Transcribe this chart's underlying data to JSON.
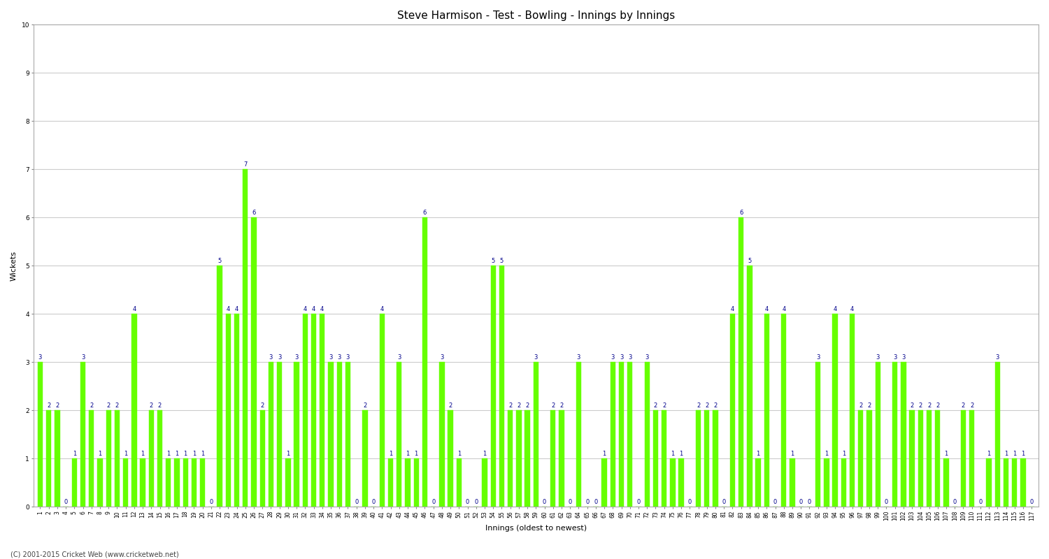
{
  "title": "Steve Harmison - Test - Bowling - Innings by Innings",
  "ylabel": "Wickets",
  "xlabel": "Innings (oldest to newest)",
  "bar_color": "#66ff00",
  "bar_edge_color": "#66ff00",
  "label_color": "#00008B",
  "background_color": "#ffffff",
  "plot_bg_color": "#ffffff",
  "grid_color": "#cccccc",
  "ylim": [
    0,
    10
  ],
  "yticks": [
    0,
    1,
    2,
    3,
    4,
    5,
    6,
    7,
    8,
    9,
    10
  ],
  "wickets": [
    3,
    2,
    2,
    0,
    1,
    3,
    2,
    1,
    2,
    2,
    1,
    4,
    1,
    2,
    2,
    1,
    1,
    1,
    1,
    1,
    0,
    5,
    4,
    4,
    7,
    6,
    2,
    3,
    3,
    1,
    3,
    4,
    4,
    4,
    3,
    3,
    3,
    0,
    2,
    0,
    4,
    1,
    3,
    1,
    1,
    6,
    0,
    3,
    2,
    1,
    0,
    0,
    1,
    5,
    5,
    2,
    2,
    2,
    3,
    0,
    2,
    2,
    0,
    3,
    0,
    0,
    1,
    3,
    3,
    3,
    0,
    3,
    2,
    2,
    1,
    1,
    0,
    2,
    2,
    2,
    0,
    4,
    6,
    5,
    1,
    4,
    0,
    4,
    1,
    0,
    0,
    3,
    1,
    4,
    1,
    4,
    2,
    2,
    3,
    0,
    3,
    3,
    2,
    2,
    2,
    2,
    1,
    0,
    2,
    2,
    0,
    1,
    3,
    1,
    1,
    1,
    0
  ],
  "x_labels": [
    "1",
    "2",
    "3",
    "4",
    "5",
    "6",
    "7",
    "8",
    "9",
    "10",
    "11",
    "12",
    "13",
    "14",
    "15",
    "16",
    "17",
    "18",
    "19",
    "20",
    "21",
    "22",
    "23",
    "24",
    "25",
    "26",
    "27",
    "28",
    "29",
    "30",
    "31",
    "32",
    "33",
    "34",
    "35",
    "36",
    "37",
    "38",
    "39",
    "40",
    "41",
    "42",
    "43",
    "44",
    "45",
    "46",
    "47",
    "48",
    "49",
    "50",
    "51",
    "52",
    "53",
    "54",
    "55",
    "56",
    "57",
    "58",
    "59",
    "60",
    "61",
    "62",
    "63",
    "64",
    "65",
    "66",
    "67",
    "68",
    "69",
    "70",
    "71",
    "72",
    "73",
    "74",
    "75",
    "76",
    "77",
    "78",
    "79",
    "80",
    "81",
    "82",
    "83",
    "84",
    "85",
    "86",
    "87",
    "88",
    "89",
    "90",
    "91",
    "92",
    "93",
    "94",
    "95",
    "96",
    "97",
    "98",
    "99",
    "100",
    "101",
    "102",
    "103",
    "104",
    "105",
    "106",
    "107",
    "108",
    "109",
    "110",
    "111",
    "112",
    "113",
    "114",
    "115",
    "116",
    "117"
  ],
  "copyright": "(C) 2001-2015 Cricket Web (www.cricketweb.net)",
  "title_fontsize": 11,
  "label_fontsize": 8,
  "tick_fontsize": 5.5,
  "annotation_fontsize": 6.0,
  "bar_width": 0.6
}
